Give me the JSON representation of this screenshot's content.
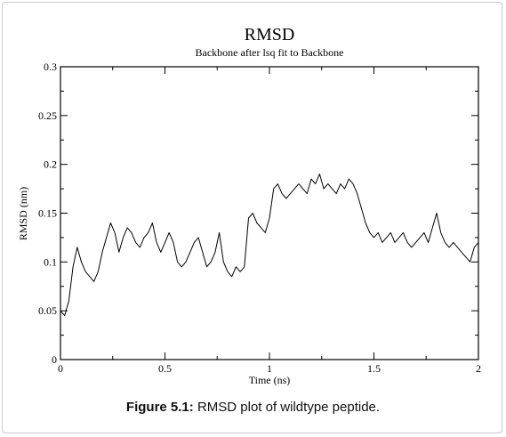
{
  "figure": {
    "caption_label": "Figure 5.1:",
    "caption_text": " RMSD plot of wildtype peptide."
  },
  "colors": {
    "line": "#000000",
    "axis": "#000000",
    "frame": "#c8c8c8"
  },
  "chart_data": {
    "type": "line",
    "title": "RMSD",
    "subtitle": "Backbone after lsq fit to Backbone",
    "xlabel": "Time (ns)",
    "ylabel": "RMSD (nm)",
    "xlim": [
      0,
      2
    ],
    "ylim": [
      0,
      0.3
    ],
    "x_ticks": [
      "0",
      "0.5",
      "1",
      "1.5",
      "2"
    ],
    "y_ticks": [
      "0",
      "0.05",
      "0.1",
      "0.15",
      "0.2",
      "0.25",
      "0.3"
    ],
    "grid": false,
    "legend": "none",
    "series": [
      {
        "x": [
          0,
          0.02,
          0.04,
          0.06,
          0.08,
          0.1,
          0.12,
          0.14,
          0.16,
          0.18,
          0.2,
          0.22,
          0.24,
          0.26,
          0.28,
          0.3,
          0.32,
          0.34,
          0.36,
          0.38,
          0.4,
          0.42,
          0.44,
          0.46,
          0.48,
          0.5,
          0.52,
          0.54,
          0.56,
          0.58,
          0.6,
          0.62,
          0.64,
          0.66,
          0.68,
          0.7,
          0.72,
          0.74,
          0.76,
          0.78,
          0.8,
          0.82,
          0.84,
          0.86,
          0.88,
          0.9,
          0.92,
          0.94,
          0.96,
          0.98,
          1.0,
          1.02,
          1.04,
          1.06,
          1.08,
          1.1,
          1.12,
          1.14,
          1.16,
          1.18,
          1.2,
          1.22,
          1.24,
          1.26,
          1.28,
          1.3,
          1.32,
          1.34,
          1.36,
          1.38,
          1.4,
          1.42,
          1.44,
          1.46,
          1.48,
          1.5,
          1.52,
          1.54,
          1.56,
          1.58,
          1.6,
          1.62,
          1.64,
          1.66,
          1.68,
          1.7,
          1.72,
          1.74,
          1.76,
          1.78,
          1.8,
          1.82,
          1.84,
          1.86,
          1.88,
          1.9,
          1.92,
          1.94,
          1.96,
          1.98,
          2.0
        ],
        "values": [
          0.05,
          0.045,
          0.06,
          0.095,
          0.115,
          0.1,
          0.09,
          0.085,
          0.08,
          0.09,
          0.11,
          0.125,
          0.14,
          0.13,
          0.11,
          0.125,
          0.135,
          0.13,
          0.12,
          0.115,
          0.125,
          0.13,
          0.14,
          0.12,
          0.11,
          0.12,
          0.13,
          0.12,
          0.1,
          0.095,
          0.1,
          0.11,
          0.12,
          0.125,
          0.11,
          0.095,
          0.1,
          0.11,
          0.13,
          0.1,
          0.09,
          0.085,
          0.095,
          0.09,
          0.095,
          0.145,
          0.15,
          0.14,
          0.135,
          0.13,
          0.145,
          0.175,
          0.18,
          0.17,
          0.165,
          0.17,
          0.175,
          0.18,
          0.175,
          0.17,
          0.185,
          0.18,
          0.19,
          0.175,
          0.18,
          0.175,
          0.17,
          0.18,
          0.175,
          0.185,
          0.18,
          0.17,
          0.155,
          0.14,
          0.13,
          0.125,
          0.13,
          0.12,
          0.125,
          0.13,
          0.12,
          0.125,
          0.13,
          0.12,
          0.115,
          0.12,
          0.125,
          0.13,
          0.12,
          0.135,
          0.15,
          0.13,
          0.12,
          0.115,
          0.12,
          0.115,
          0.11,
          0.105,
          0.1,
          0.115,
          0.12
        ]
      }
    ]
  }
}
